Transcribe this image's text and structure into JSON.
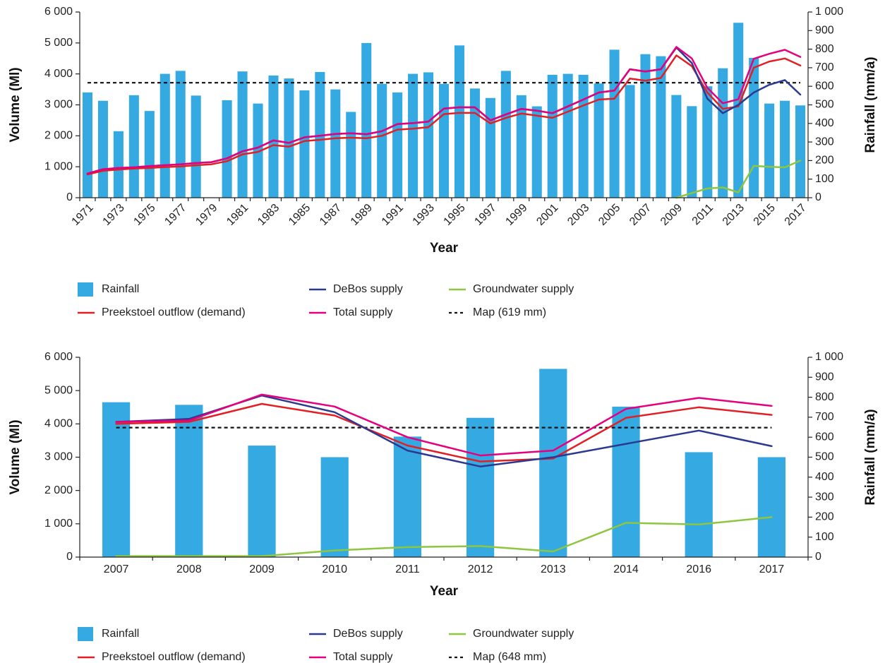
{
  "chart_data": [
    {
      "type": "combo",
      "x_label": "Year",
      "y_label": "Volume (Ml)",
      "y2_label": "Rainfall (mm/a)",
      "categories": [
        "1971",
        null,
        "1973",
        null,
        "1975",
        null,
        "1977",
        null,
        "1979",
        null,
        "1981",
        null,
        "1983",
        null,
        "1985",
        null,
        "1987",
        null,
        "1989",
        null,
        "1991",
        null,
        "1993",
        null,
        "1995",
        null,
        "1997",
        null,
        "1999",
        null,
        "2001",
        null,
        "2003",
        null,
        "2005",
        null,
        "2007",
        null,
        "2009",
        null,
        "2011",
        null,
        "2013",
        null,
        "2015",
        null,
        "2017"
      ],
      "ylim": [
        0,
        6000
      ],
      "yticks": [
        0,
        {
          "value": 1000,
          "label": "1 000"
        },
        {
          "value": 2000,
          "label": "2 000"
        },
        {
          "value": 3000,
          "label": "3 000"
        },
        {
          "value": 4000,
          "label": "4 000"
        },
        {
          "value": 5000,
          "label": "5 000"
        },
        {
          "value": 6000,
          "label": "6 000"
        }
      ],
      "y2lim": [
        0,
        1000
      ],
      "y2ticks": [
        0,
        100,
        200,
        300,
        400,
        500,
        600,
        700,
        800,
        900,
        {
          "value": 1000,
          "label": "1 000"
        }
      ],
      "series": [
        {
          "name": "Rainfall",
          "type": "bar",
          "axis": "y2",
          "color": "#35a9e1",
          "values": [
            567,
            522,
            358,
            552,
            467,
            667,
            683,
            550,
            null,
            525,
            680,
            507,
            658,
            642,
            578,
            677,
            583,
            462,
            833,
            613,
            567,
            667,
            675,
            613,
            820,
            588,
            537,
            683,
            552,
            492,
            662,
            667,
            662,
            615,
            797,
            607,
            773,
            762,
            553,
            493,
            600,
            697,
            942,
            753,
            507,
            522,
            497
          ]
        },
        {
          "name": "Preekstoel outflow (demand)",
          "type": "line",
          "color": "#e31f26",
          "values": [
            750,
            870,
            910,
            940,
            960,
            990,
            1010,
            1050,
            1080,
            1180,
            1400,
            1480,
            1700,
            1650,
            1830,
            1870,
            1920,
            1940,
            1920,
            2000,
            2200,
            2230,
            2280,
            2700,
            2740,
            2740,
            2400,
            2580,
            2720,
            2650,
            2580,
            2780,
            2980,
            3170,
            3200,
            3850,
            3780,
            3870,
            4600,
            4250,
            3400,
            2870,
            2950,
            4200,
            4400,
            4500,
            4270
          ]
        },
        {
          "name": "DeBos supply",
          "type": "line",
          "color": "#2b3990",
          "values": [
            780,
            920,
            960,
            980,
            1020,
            1050,
            1080,
            1120,
            1150,
            1270,
            1500,
            1620,
            1850,
            1770,
            1950,
            2000,
            2060,
            2080,
            2050,
            2150,
            2380,
            2410,
            2460,
            2880,
            2920,
            2920,
            2500,
            2690,
            2870,
            2810,
            2730,
            2950,
            3170,
            3400,
            3460,
            4150,
            4080,
            4150,
            4850,
            4350,
            3200,
            2730,
            3000,
            3400,
            3650,
            3800,
            3330
          ]
        },
        {
          "name": "Total supply",
          "type": "line",
          "color": "#e6007e",
          "values": [
            780,
            920,
            960,
            980,
            1020,
            1050,
            1080,
            1120,
            1150,
            1270,
            1500,
            1620,
            1850,
            1770,
            1950,
            2000,
            2060,
            2080,
            2050,
            2150,
            2380,
            2410,
            2460,
            2880,
            2920,
            2920,
            2500,
            2690,
            2870,
            2810,
            2730,
            2950,
            3170,
            3400,
            3460,
            4150,
            4080,
            4150,
            4870,
            4500,
            3550,
            3050,
            3180,
            4490,
            4650,
            4780,
            4550
          ]
        },
        {
          "name": "Groundwater supply",
          "type": "line",
          "color": "#8dc63f",
          "values": [
            null,
            null,
            null,
            null,
            null,
            null,
            null,
            null,
            null,
            null,
            null,
            null,
            null,
            null,
            null,
            null,
            null,
            null,
            null,
            null,
            null,
            null,
            null,
            null,
            null,
            null,
            null,
            null,
            null,
            null,
            null,
            null,
            null,
            null,
            null,
            null,
            null,
            null,
            0,
            150,
            300,
            330,
            170,
            1030,
            1000,
            980,
            1200
          ]
        }
      ],
      "reference_line": {
        "name": "Map (619 mm)",
        "value": 619,
        "axis": "y2",
        "color": "#111111"
      }
    },
    {
      "type": "combo",
      "x_label": "Year",
      "y_label": "Volume (Ml)",
      "y2_label": "Rainfall (mm/a)",
      "categories": [
        "2007",
        "2008",
        "2009",
        "2010",
        "2011",
        "2012",
        "2013",
        "2014",
        "2016",
        "2017"
      ],
      "ylim": [
        0,
        6000
      ],
      "yticks": [
        0,
        {
          "value": 1000,
          "label": "1 000"
        },
        {
          "value": 2000,
          "label": "2 000"
        },
        {
          "value": 3000,
          "label": "3 000"
        },
        {
          "value": 4000,
          "label": "4 000"
        },
        {
          "value": 5000,
          "label": "5 000"
        },
        {
          "value": 6000,
          "label": "6 000"
        }
      ],
      "y2lim": [
        0,
        1000
      ],
      "y2ticks": [
        0,
        100,
        200,
        300,
        400,
        500,
        600,
        700,
        800,
        900,
        {
          "value": 1000,
          "label": "1 000"
        }
      ],
      "series": [
        {
          "name": "Rainfall",
          "type": "bar",
          "axis": "y2",
          "color": "#35a9e1",
          "values": [
            775,
            762,
            558,
            500,
            603,
            697,
            942,
            753,
            525,
            500
          ]
        },
        {
          "name": "Preekstoel outflow (demand)",
          "type": "line",
          "color": "#e31f26",
          "values": [
            4000,
            4060,
            4600,
            4250,
            3350,
            2870,
            2960,
            4180,
            4500,
            4270
          ]
        },
        {
          "name": "DeBos supply",
          "type": "line",
          "color": "#2b3990",
          "values": [
            4060,
            4150,
            4850,
            4350,
            3200,
            2720,
            3000,
            3400,
            3800,
            3330
          ]
        },
        {
          "name": "Total supply",
          "type": "line",
          "color": "#e6007e",
          "values": [
            4060,
            4100,
            4880,
            4520,
            3600,
            3050,
            3200,
            4450,
            4780,
            4540
          ]
        },
        {
          "name": "Groundwater supply",
          "type": "line",
          "color": "#8dc63f",
          "values": [
            30,
            30,
            30,
            200,
            300,
            330,
            170,
            1030,
            980,
            1200
          ]
        }
      ],
      "reference_line": {
        "name": "Map (648 mm)",
        "value": 648,
        "axis": "y2",
        "color": "#111111"
      }
    }
  ]
}
